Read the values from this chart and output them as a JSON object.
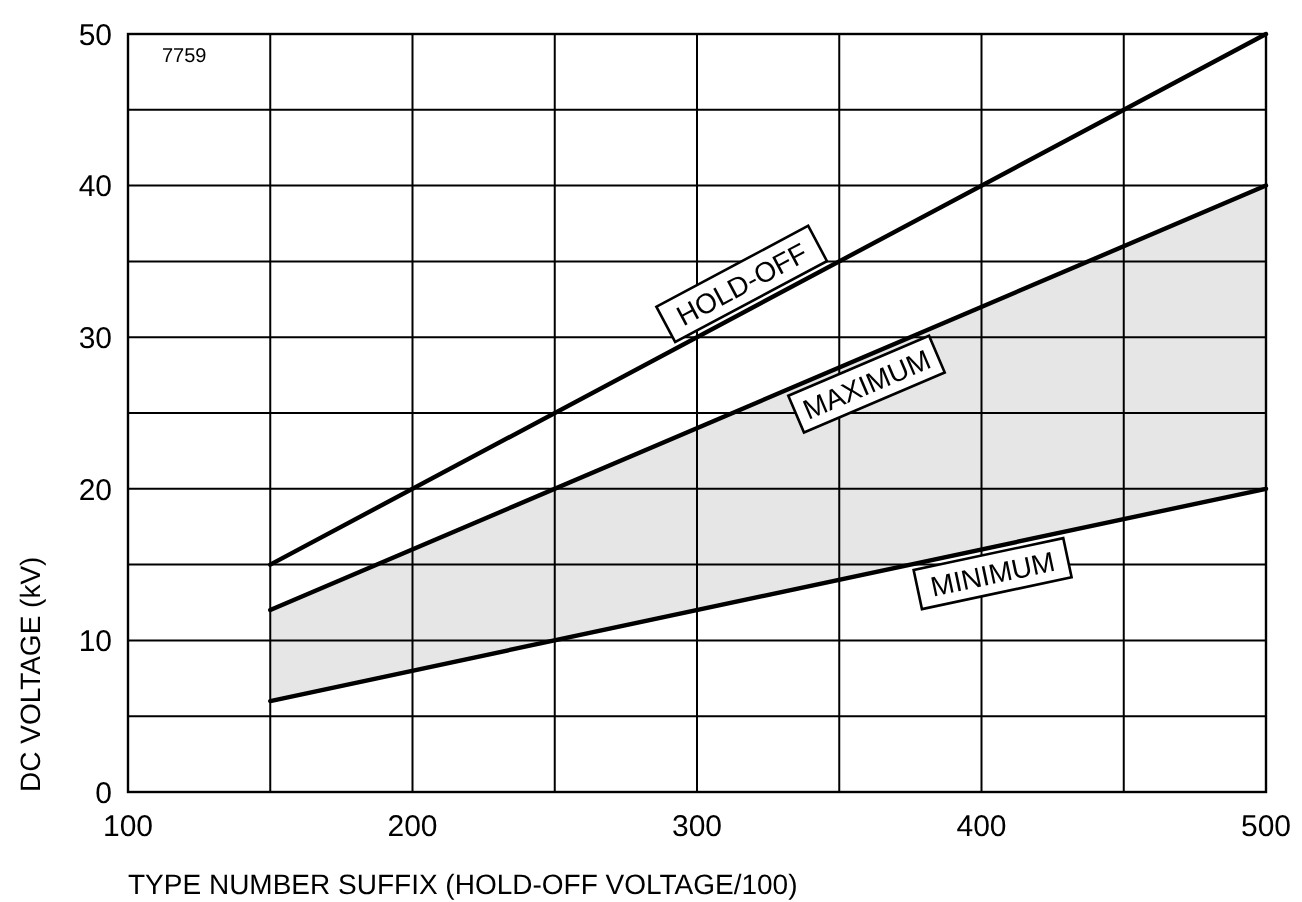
{
  "chart_data": {
    "type": "line",
    "xlabel": "TYPE NUMBER SUFFIX (HOLD-OFF VOLTAGE/100)",
    "ylabel": "DC VOLTAGE (kV)",
    "annotations": [
      "7759"
    ],
    "xlim": [
      100,
      500
    ],
    "ylim": [
      0,
      50
    ],
    "xticks": [
      100,
      {
        "value": 150,
        "label": null
      },
      200,
      {
        "value": 250,
        "label": null
      },
      300,
      {
        "value": 350,
        "label": null
      },
      400,
      {
        "value": 450,
        "label": null
      },
      500
    ],
    "yticks": [
      0,
      {
        "value": 5,
        "label": null
      },
      10,
      {
        "value": 15,
        "label": null
      },
      20,
      {
        "value": 25,
        "label": null
      },
      30,
      {
        "value": 35,
        "label": null
      },
      40,
      {
        "value": 45,
        "label": null
      },
      50
    ],
    "grid": true,
    "marker": "none",
    "line_style": "solid",
    "x": [
      150,
      500
    ],
    "series": [
      {
        "name": "HOLD-OFF",
        "color": "#000000",
        "values": [
          15,
          50
        ]
      },
      {
        "name": "MAXIMUM",
        "color": "#000000",
        "values": [
          12,
          40
        ],
        "lower": [
          6,
          20
        ],
        "upper": [
          12,
          40
        ]
      },
      {
        "name": "MINIMUM",
        "color": "#000000",
        "values": [
          6,
          20
        ]
      }
    ]
  }
}
